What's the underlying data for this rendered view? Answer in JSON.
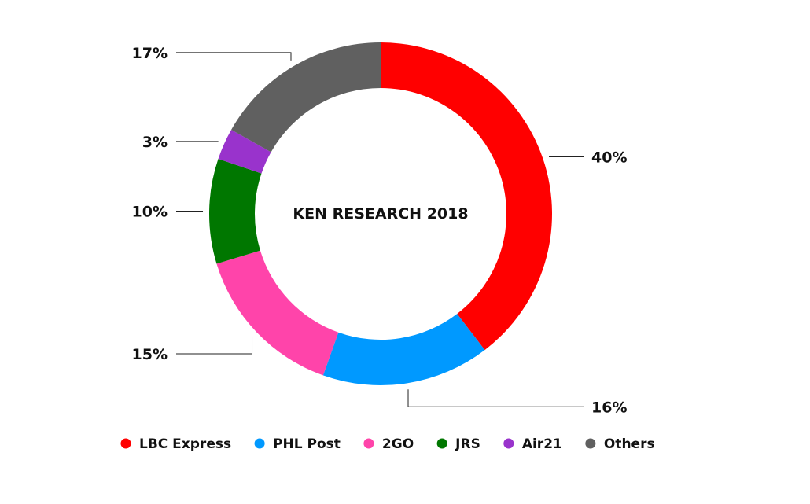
{
  "chart_data": {
    "type": "pie",
    "variant": "donut",
    "title": "KEN RESEARCH 2018",
    "slices": [
      {
        "name": "LBC Express",
        "value": 40,
        "label": "40%",
        "color": "#ff0000"
      },
      {
        "name": "PHL Post",
        "value": 16,
        "label": "16%",
        "color": "#0099ff"
      },
      {
        "name": "2GO",
        "value": 15,
        "label": "15%",
        "color": "#ff44aa"
      },
      {
        "name": "JRS",
        "value": 10,
        "label": "10%",
        "color": "#007700"
      },
      {
        "name": "Air21",
        "value": 3,
        "label": "3%",
        "color": "#9933cc"
      },
      {
        "name": "Others",
        "value": 17,
        "label": "17%",
        "color": "#606060"
      }
    ],
    "legend_position": "bottom"
  }
}
